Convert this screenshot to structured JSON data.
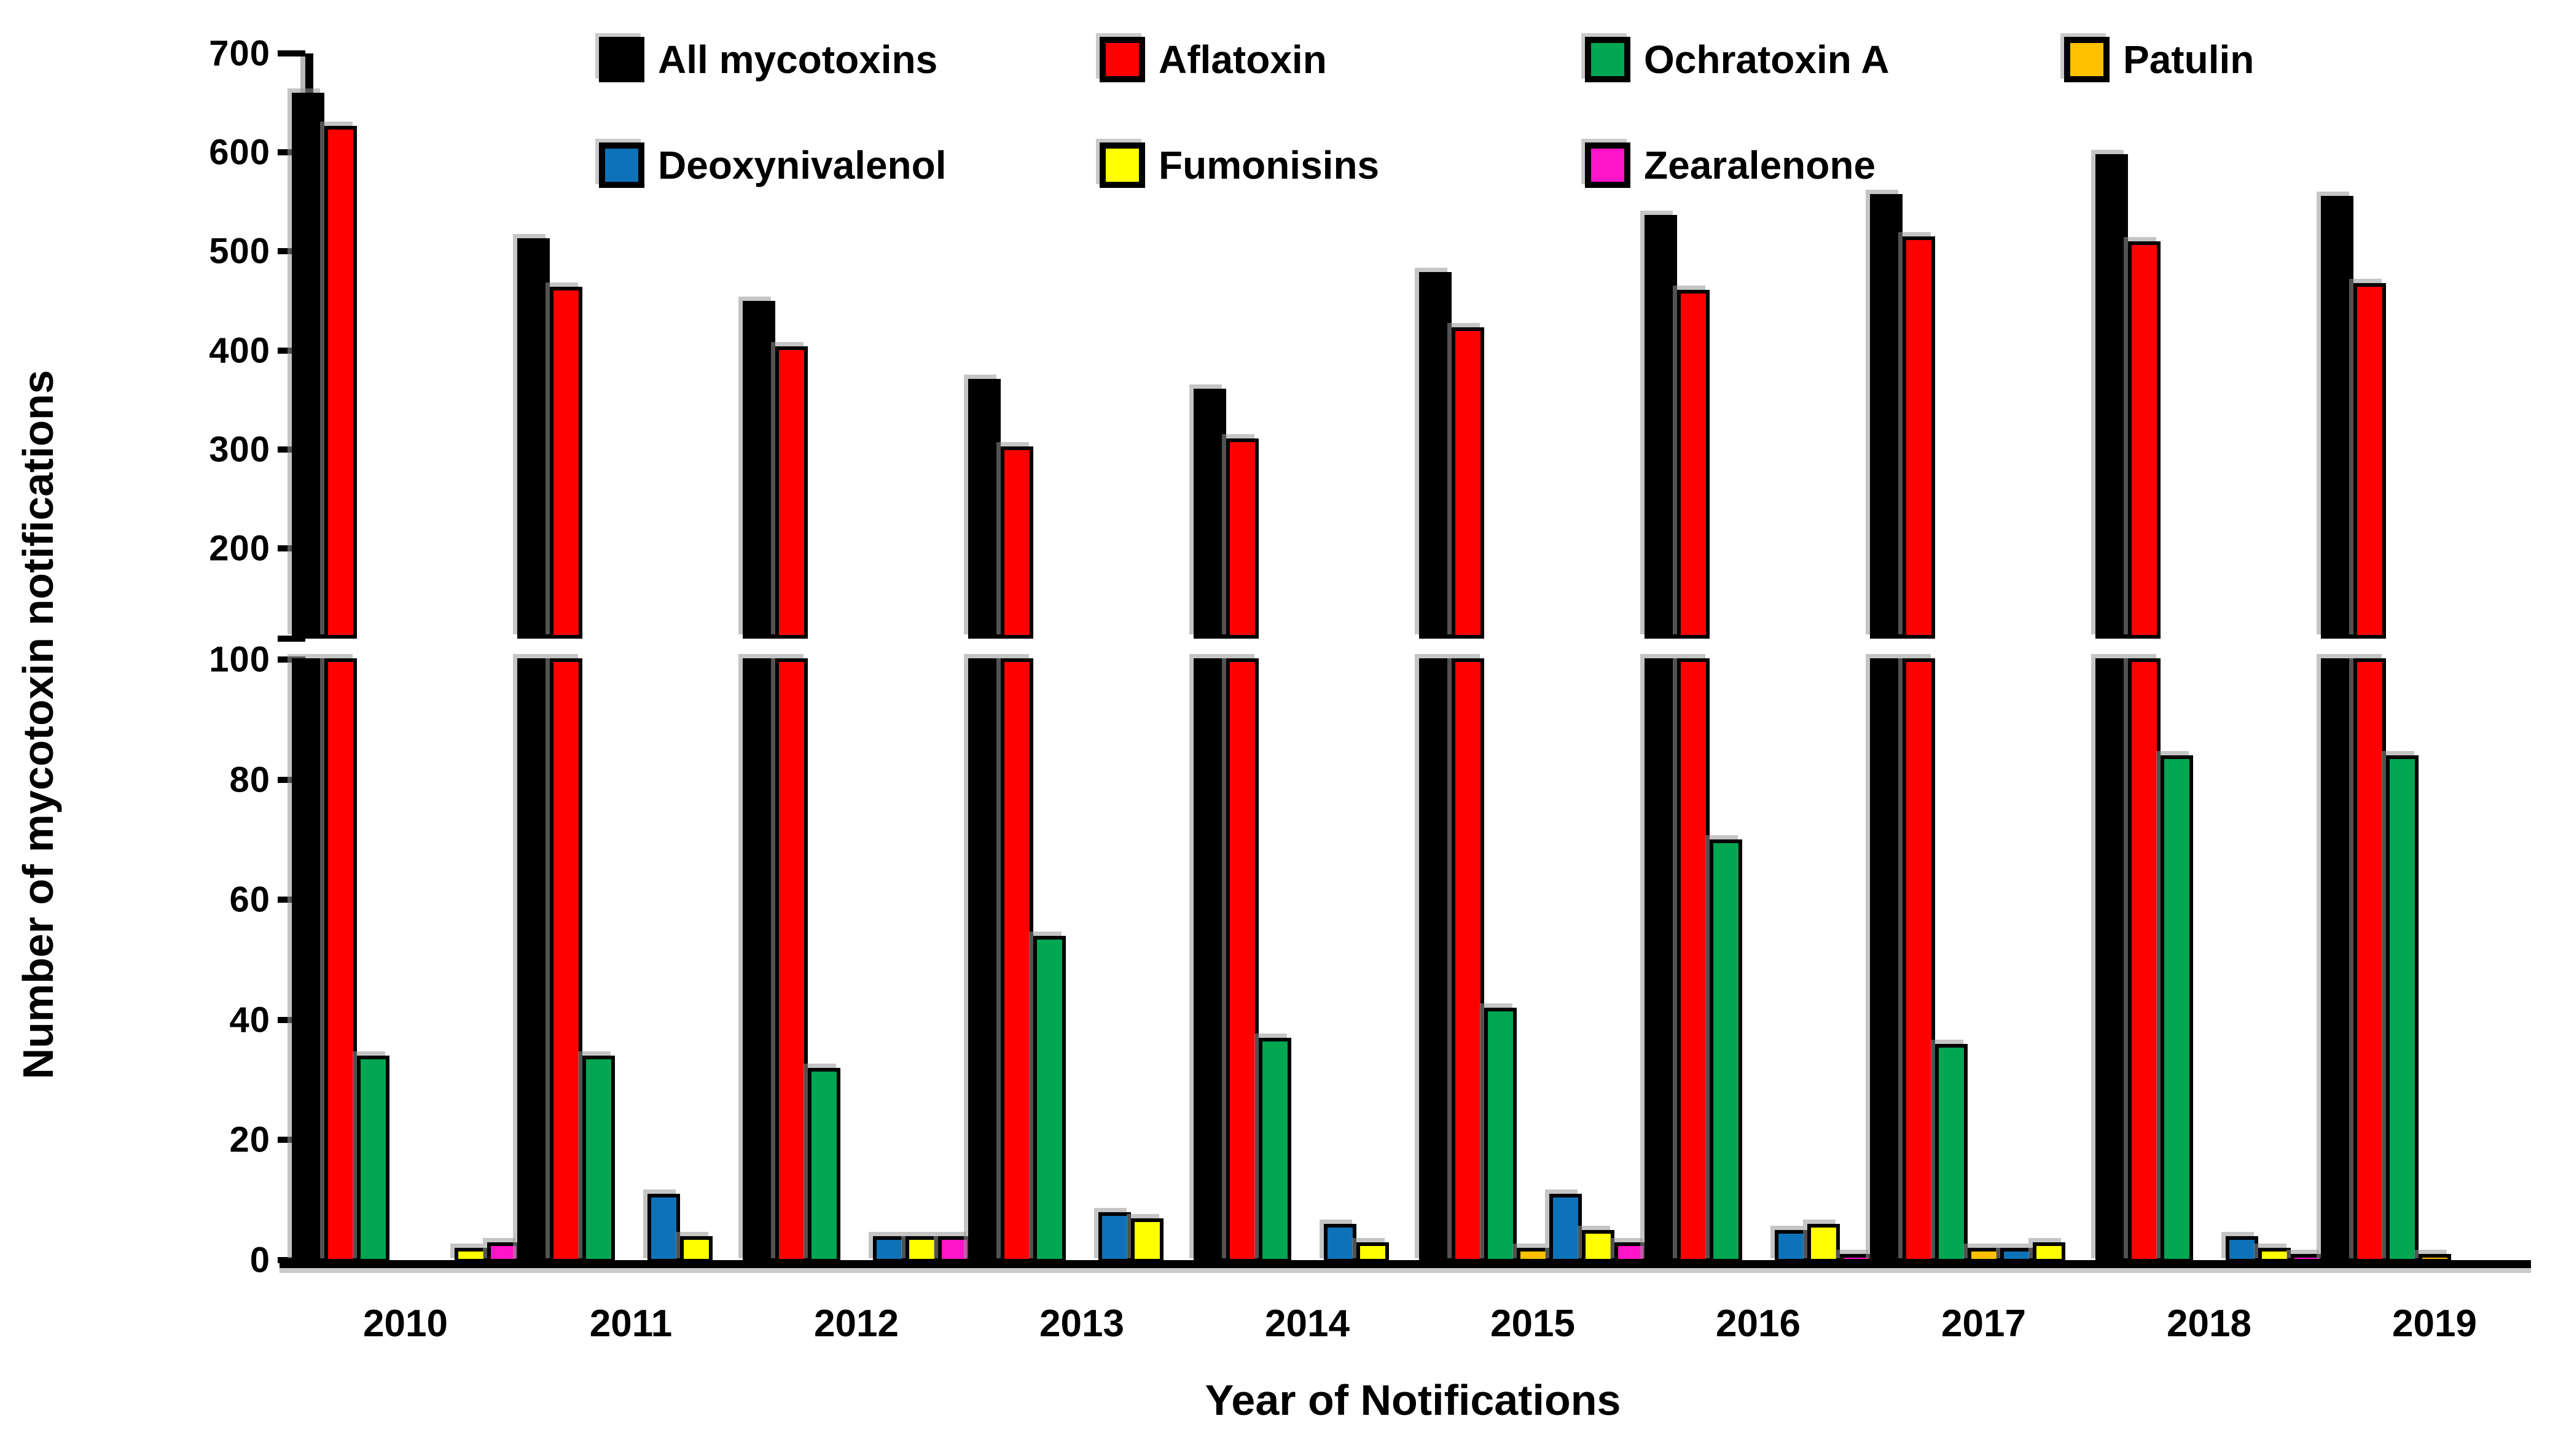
{
  "figure": {
    "background": "#FFFFFF",
    "x_title": "Year of Notifications",
    "y_title": "Number of mycotoxin notifications"
  },
  "chart_data": {
    "type": "bar",
    "title": "",
    "xlabel": "Year of Notifications",
    "ylabel": "Number of mycotoxin notifications",
    "categories": [
      "2010",
      "2011",
      "2012",
      "2013",
      "2014",
      "2015",
      "2016",
      "2017",
      "2018",
      "2019"
    ],
    "series": [
      {
        "name": "All mycotoxins",
        "color": "#000000",
        "values": [
          660,
          513,
          450,
          371,
          361,
          479,
          537,
          558,
          598,
          556
        ]
      },
      {
        "name": "Aflatoxin",
        "color": "#FF0000",
        "values": [
          627,
          464,
          404,
          303,
          311,
          423,
          461,
          515,
          510,
          468
        ]
      },
      {
        "name": "Ochratoxin A",
        "color": "#00A651",
        "values": [
          34,
          34,
          32,
          54,
          37,
          42,
          70,
          36,
          84,
          84
        ]
      },
      {
        "name": "Patulin",
        "color": "#FFC000",
        "values": [
          0,
          0,
          0,
          0,
          0,
          2,
          0,
          2,
          0,
          1
        ]
      },
      {
        "name": "Deoxynivalenol",
        "color": "#0E72B8",
        "values": [
          0,
          11,
          4,
          8,
          6,
          11,
          5,
          2,
          4,
          0
        ]
      },
      {
        "name": "Fumonisins",
        "color": "#FFFF00",
        "values": [
          2,
          4,
          4,
          7,
          3,
          5,
          6,
          3,
          2,
          0
        ]
      },
      {
        "name": "Zearalenone",
        "color": "#FF14C8",
        "values": [
          3,
          0,
          4,
          0,
          0,
          3,
          1,
          0,
          1,
          0
        ]
      }
    ],
    "y_axis": {
      "broken_axis": true,
      "upper": {
        "min": 100,
        "max": 700,
        "ticks": [
          200,
          300,
          400,
          500,
          600,
          700
        ]
      },
      "lower": {
        "min": 0,
        "max": 100,
        "ticks": [
          0,
          20,
          40,
          60,
          80,
          100
        ]
      }
    },
    "grid": "off",
    "legend_position": "top-inside",
    "legend_rows": [
      [
        "All mycotoxins",
        "Aflatoxin",
        "Ochratoxin A",
        "Patulin"
      ],
      [
        "Deoxynivalenol",
        "Fumonisins",
        "Zearalenone"
      ]
    ]
  }
}
